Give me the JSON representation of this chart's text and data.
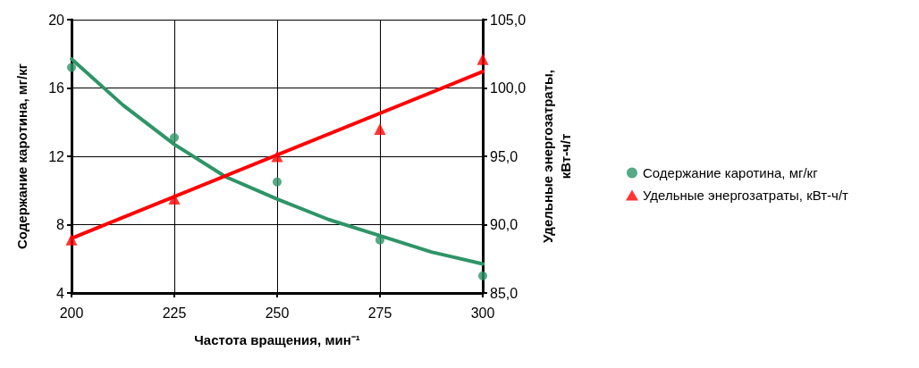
{
  "chart_data": {
    "type": "scatter",
    "xlabel": "Частота вращения, мин⁻¹",
    "ylabel": "Содержание каротина, мг/кг",
    "y2label": "Удельные энергозатраты,\nкВт-ч/т",
    "x": [
      200,
      225,
      250,
      275,
      300
    ],
    "series": [
      {
        "name": "Содержание каротина, мг/кг",
        "marker": "circle",
        "color": "#2e9466",
        "values": [
          17.2,
          13.1,
          10.5,
          7.1,
          5.0
        ]
      },
      {
        "name": "Удельные энергозатраты, кВт-ч/т",
        "marker": "triangle",
        "axis": "y2",
        "color": "#ff0000",
        "values": [
          88.9,
          91.9,
          95.0,
          97.0,
          102.1
        ]
      },
      {
        "type": "line",
        "marker": "none",
        "color": "#2e9466",
        "x": [
          200,
          212.5,
          225,
          237.5,
          250,
          262.5,
          275,
          287.5,
          300
        ],
        "values": [
          17.7,
          15.0,
          12.7,
          10.8,
          9.5,
          8.3,
          7.35,
          6.4,
          5.7
        ]
      },
      {
        "type": "line",
        "marker": "none",
        "axis": "y2",
        "color": "#ff0000",
        "x": [
          200,
          300
        ],
        "values": [
          89.0,
          101.2
        ]
      }
    ],
    "xlim": [
      200,
      300
    ],
    "xticks": [
      200,
      225,
      250,
      275,
      300
    ],
    "ylim": [
      4,
      20
    ],
    "yticks": [
      4,
      8,
      12,
      16,
      20
    ],
    "y2lim": [
      85,
      105
    ],
    "y2ticks": [
      {
        "value": 85,
        "label": "85,0"
      },
      {
        "value": 90,
        "label": "90,0"
      },
      {
        "value": 95,
        "label": "95,0"
      },
      {
        "value": 100,
        "label": "100,0"
      },
      {
        "value": 105,
        "label": "105,0"
      }
    ],
    "grid": true,
    "legend": "right"
  }
}
